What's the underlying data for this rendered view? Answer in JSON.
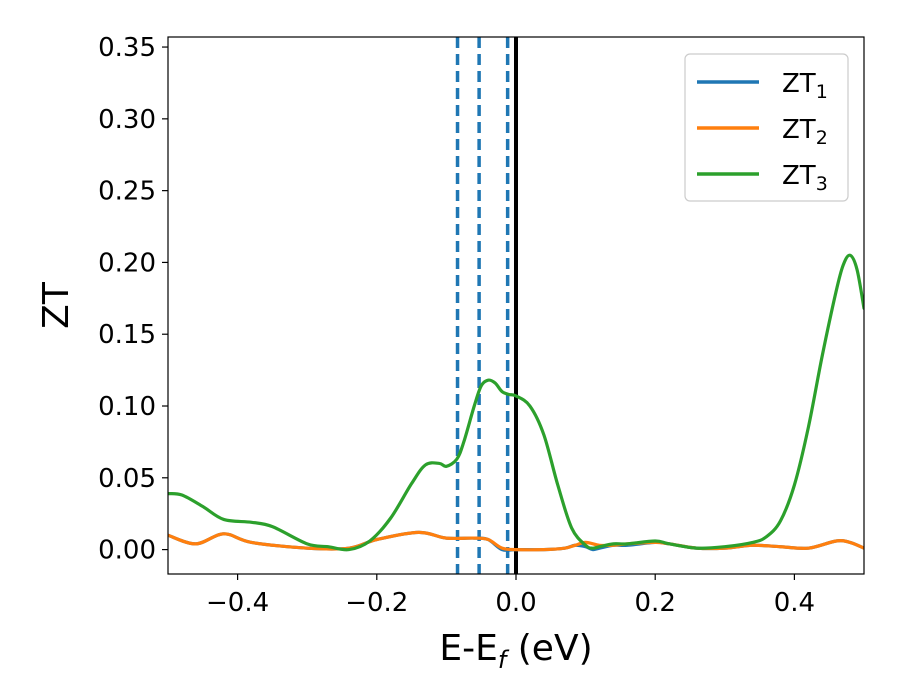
{
  "chart_data": {
    "type": "line",
    "xlabel": "E-E",
    "xlabel_sub": "f",
    "xlabel_unit": " (eV)",
    "ylabel": "ZT",
    "xlim": [
      -0.5,
      0.5
    ],
    "ylim": [
      -0.017,
      0.357
    ],
    "x_ticks": [
      -0.4,
      -0.2,
      0.0,
      0.2,
      0.4
    ],
    "x_tick_labels": [
      "−0.4",
      "−0.2",
      "0.0",
      "0.2",
      "0.4"
    ],
    "y_ticks": [
      0.0,
      0.05,
      0.1,
      0.15,
      0.2,
      0.25,
      0.3,
      0.35
    ],
    "y_tick_labels": [
      "0.00",
      "0.05",
      "0.10",
      "0.15",
      "0.20",
      "0.25",
      "0.30",
      "0.35"
    ],
    "grid": false,
    "legend_position": "top-right",
    "vlines": [
      {
        "x": -0.084,
        "style": "dashed",
        "color": "#1f77b4"
      },
      {
        "x": -0.053,
        "style": "dashed",
        "color": "#1f77b4"
      },
      {
        "x": -0.012,
        "style": "dashed",
        "color": "#1f77b4"
      },
      {
        "x": 0.0,
        "style": "solid",
        "color": "#000000"
      }
    ],
    "series": [
      {
        "name": "ZT",
        "sub": "1",
        "color": "#1f77b4",
        "x": [
          -0.5,
          -0.46,
          -0.42,
          -0.38,
          -0.3,
          -0.24,
          -0.2,
          -0.14,
          -0.1,
          -0.06,
          -0.04,
          -0.02,
          0.0,
          0.04,
          0.07,
          0.085,
          0.1,
          0.11,
          0.12,
          0.14,
          0.16,
          0.2,
          0.22,
          0.26,
          0.3,
          0.34,
          0.38,
          0.42,
          0.46,
          0.48,
          0.5
        ],
        "y": [
          0.01,
          0.004,
          0.011,
          0.005,
          0.001,
          0.001,
          0.007,
          0.012,
          0.008,
          0.008,
          0.007,
          0.0,
          0.0,
          0.0,
          0.001,
          0.003,
          0.002,
          0.0,
          0.001,
          0.003,
          0.003,
          0.005,
          0.004,
          0.001,
          0.001,
          0.003,
          0.002,
          0.001,
          0.006,
          0.005,
          0.001
        ]
      },
      {
        "name": "ZT",
        "sub": "2",
        "color": "#ff7f0e",
        "x": [
          -0.5,
          -0.46,
          -0.42,
          -0.38,
          -0.3,
          -0.24,
          -0.2,
          -0.14,
          -0.1,
          -0.06,
          -0.04,
          -0.02,
          0.0,
          0.04,
          0.07,
          0.085,
          0.1,
          0.12,
          0.14,
          0.16,
          0.2,
          0.22,
          0.26,
          0.3,
          0.34,
          0.38,
          0.42,
          0.46,
          0.48,
          0.5
        ],
        "y": [
          0.01,
          0.004,
          0.011,
          0.005,
          0.001,
          0.001,
          0.007,
          0.012,
          0.008,
          0.008,
          0.007,
          0.001,
          0.0,
          0.0,
          0.001,
          0.003,
          0.005,
          0.003,
          0.003,
          0.004,
          0.005,
          0.004,
          0.001,
          0.001,
          0.003,
          0.002,
          0.001,
          0.006,
          0.005,
          0.001
        ]
      },
      {
        "name": "ZT",
        "sub": "3",
        "color": "#2ca02c",
        "x": [
          -0.5,
          -0.48,
          -0.45,
          -0.42,
          -0.38,
          -0.35,
          -0.3,
          -0.27,
          -0.24,
          -0.21,
          -0.18,
          -0.15,
          -0.13,
          -0.11,
          -0.1,
          -0.085,
          -0.075,
          -0.06,
          -0.05,
          -0.04,
          -0.03,
          -0.02,
          -0.01,
          0.0,
          0.02,
          0.04,
          0.06,
          0.08,
          0.1,
          0.11,
          0.12,
          0.14,
          0.16,
          0.2,
          0.22,
          0.26,
          0.3,
          0.34,
          0.36,
          0.38,
          0.4,
          0.42,
          0.44,
          0.46,
          0.47,
          0.48,
          0.49,
          0.5
        ],
        "y": [
          0.039,
          0.038,
          0.03,
          0.021,
          0.019,
          0.016,
          0.004,
          0.002,
          0.0,
          0.006,
          0.022,
          0.046,
          0.059,
          0.06,
          0.058,
          0.063,
          0.075,
          0.1,
          0.114,
          0.118,
          0.116,
          0.11,
          0.108,
          0.107,
          0.1,
          0.08,
          0.045,
          0.015,
          0.003,
          0.001,
          0.002,
          0.004,
          0.004,
          0.006,
          0.004,
          0.001,
          0.002,
          0.005,
          0.009,
          0.02,
          0.045,
          0.085,
          0.135,
          0.18,
          0.198,
          0.205,
          0.195,
          0.168
        ]
      }
    ]
  }
}
